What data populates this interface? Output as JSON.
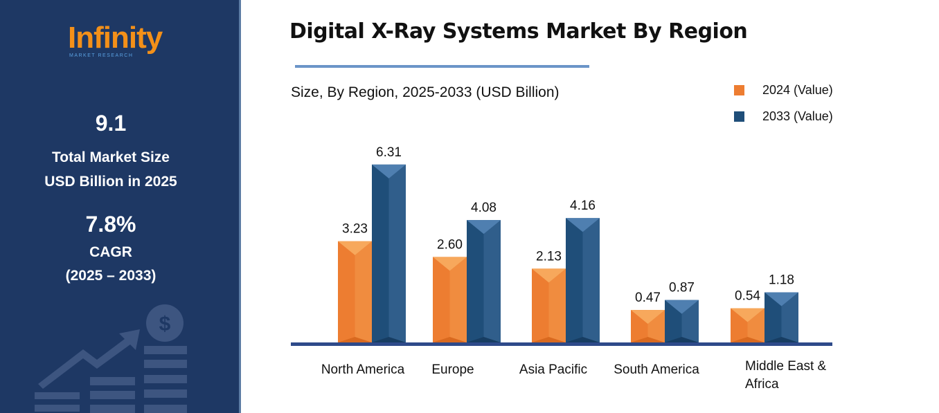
{
  "sidebar": {
    "logo": "Infinity",
    "logo_sub": "MARKET RESEARCH",
    "market_size": "9.1",
    "market_label1": "Total Market Size",
    "market_label2": "USD Billion in 2025",
    "cagr": "7.8%",
    "cagr_label": "CAGR",
    "cagr_period": "(2025 – 2033)"
  },
  "chart_data": {
    "type": "bar",
    "title": "Digital X-Ray Systems Market By Region",
    "subtitle": "Size, By Region, 2025-2033 (USD Billion)",
    "categories": [
      "North America",
      "Europe",
      "Asia Pacific",
      "South America",
      "Middle East & Africa"
    ],
    "series": [
      {
        "name": "2024 (Value)",
        "color": "#ed7d31",
        "values": [
          3.23,
          2.6,
          2.13,
          0.47,
          0.54
        ]
      },
      {
        "name": "2033 (Value)",
        "color": "#1f4e79",
        "values": [
          6.31,
          4.08,
          4.16,
          0.87,
          1.18
        ]
      }
    ],
    "value_labels": [
      [
        "3.23",
        "2.60",
        "2.13",
        "0.47",
        "0.54"
      ],
      [
        "6.31",
        "4.08",
        "4.16",
        "0.87",
        "1.18"
      ]
    ],
    "legend": "top-right",
    "grid": false
  }
}
